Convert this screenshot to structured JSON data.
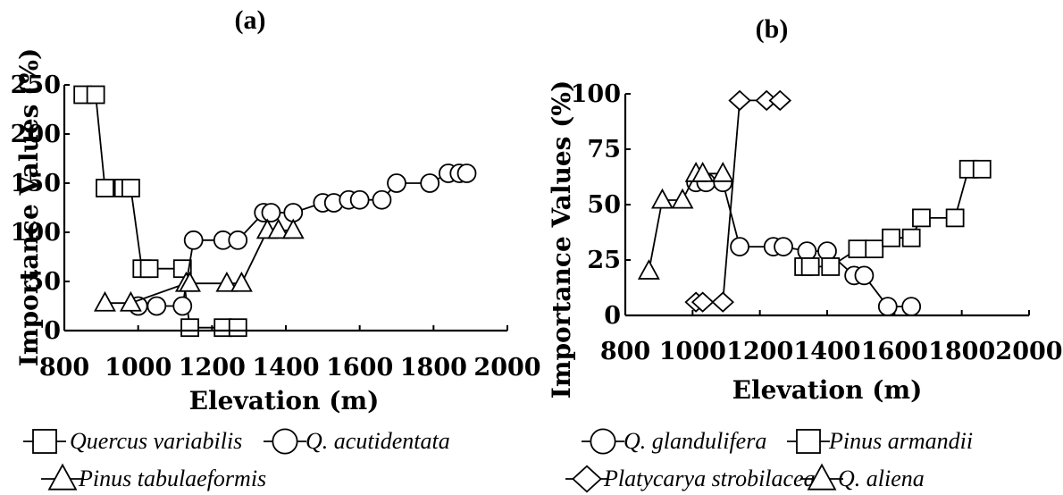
{
  "chart_data": [
    {
      "type": "line",
      "panel_label": "(a)",
      "xlabel": "Elevation (m)",
      "ylabel": "Importance Values (%)",
      "xlim": [
        800,
        2000
      ],
      "ylim": [
        0,
        250
      ],
      "xticks": [
        "800",
        "1000",
        "1200",
        "1400",
        "1600",
        "1800",
        "2000"
      ],
      "yticks": [
        "0",
        "50",
        "100",
        "150",
        "200",
        "250"
      ],
      "series": [
        {
          "name": "Quercus variabilis",
          "marker": "square",
          "points": [
            [
              850,
              240
            ],
            [
              885,
              240
            ],
            [
              910,
              145
            ],
            [
              960,
              145
            ],
            [
              980,
              145
            ],
            [
              1010,
              63
            ],
            [
              1030,
              63
            ],
            [
              1120,
              63
            ],
            [
              1140,
              3
            ],
            [
              1230,
              3
            ],
            [
              1270,
              3
            ]
          ]
        },
        {
          "name": "Q. acutidentata",
          "marker": "circle",
          "points": [
            [
              1000,
              25
            ],
            [
              1050,
              25
            ],
            [
              1120,
              25
            ],
            [
              1150,
              92
            ],
            [
              1230,
              92
            ],
            [
              1270,
              92
            ],
            [
              1340,
              120
            ],
            [
              1360,
              120
            ],
            [
              1420,
              120
            ],
            [
              1500,
              130
            ],
            [
              1530,
              130
            ],
            [
              1570,
              133
            ],
            [
              1600,
              133
            ],
            [
              1660,
              133
            ],
            [
              1700,
              150
            ],
            [
              1790,
              150
            ],
            [
              1840,
              160
            ],
            [
              1870,
              160
            ],
            [
              1890,
              160
            ]
          ]
        },
        {
          "name": "Pinus tabulaeformis",
          "marker": "triangle",
          "points": [
            [
              910,
              28
            ],
            [
              980,
              28
            ],
            [
              1130,
              48
            ],
            [
              1140,
              48
            ],
            [
              1240,
              48
            ],
            [
              1280,
              48
            ],
            [
              1350,
              102
            ],
            [
              1380,
              102
            ],
            [
              1420,
              102
            ]
          ]
        }
      ]
    },
    {
      "type": "line",
      "panel_label": "(b)",
      "xlabel": "Elevation (m)",
      "ylabel": "Importance Values (%)",
      "xlim": [
        800,
        2000
      ],
      "ylim": [
        0,
        100
      ],
      "xticks": [
        "800",
        "1000",
        "1200",
        "1400",
        "1600",
        "1800",
        "2000"
      ],
      "yticks": [
        "0",
        "25",
        "50",
        "75",
        "100"
      ],
      "series": [
        {
          "name": "Q. glandulifera",
          "marker": "circle",
          "points": [
            [
              1010,
              60
            ],
            [
              1040,
              60
            ],
            [
              1090,
              60
            ],
            [
              1140,
              31
            ],
            [
              1240,
              31
            ],
            [
              1270,
              31
            ],
            [
              1340,
              29
            ],
            [
              1400,
              29
            ],
            [
              1480,
              18
            ],
            [
              1510,
              18
            ],
            [
              1580,
              4
            ],
            [
              1650,
              4
            ]
          ]
        },
        {
          "name": "Pinus armandii",
          "marker": "square",
          "points": [
            [
              1330,
              22
            ],
            [
              1350,
              22
            ],
            [
              1410,
              22
            ],
            [
              1490,
              30
            ],
            [
              1540,
              30
            ],
            [
              1590,
              35
            ],
            [
              1650,
              35
            ],
            [
              1680,
              44
            ],
            [
              1780,
              44
            ],
            [
              1820,
              66
            ],
            [
              1860,
              66
            ]
          ]
        },
        {
          "name": "Platycarya strobilacea",
          "marker": "diamond",
          "points": [
            [
              1010,
              6
            ],
            [
              1030,
              6
            ],
            [
              1090,
              6
            ],
            [
              1140,
              97
            ],
            [
              1220,
              97
            ],
            [
              1260,
              97
            ]
          ]
        },
        {
          "name": "Q. aliena",
          "marker": "triangle",
          "points": [
            [
              870,
              20
            ],
            [
              910,
              52
            ],
            [
              970,
              52
            ],
            [
              1010,
              64
            ],
            [
              1030,
              64
            ],
            [
              1090,
              64
            ]
          ]
        }
      ]
    }
  ],
  "legend": {
    "a": [
      {
        "label": "Quercus variabilis",
        "marker": "square"
      },
      {
        "label": "Q. acutidentata",
        "marker": "circle"
      },
      {
        "label": "Pinus tabulaeformis",
        "marker": "triangle"
      }
    ],
    "b": [
      {
        "label": "Q. glandulifera",
        "marker": "circle"
      },
      {
        "label": "Pinus armandii",
        "marker": "square"
      },
      {
        "label": "Platycarya strobilacea",
        "marker": "diamond"
      },
      {
        "label": "Q. aliena",
        "marker": "triangle"
      }
    ]
  }
}
